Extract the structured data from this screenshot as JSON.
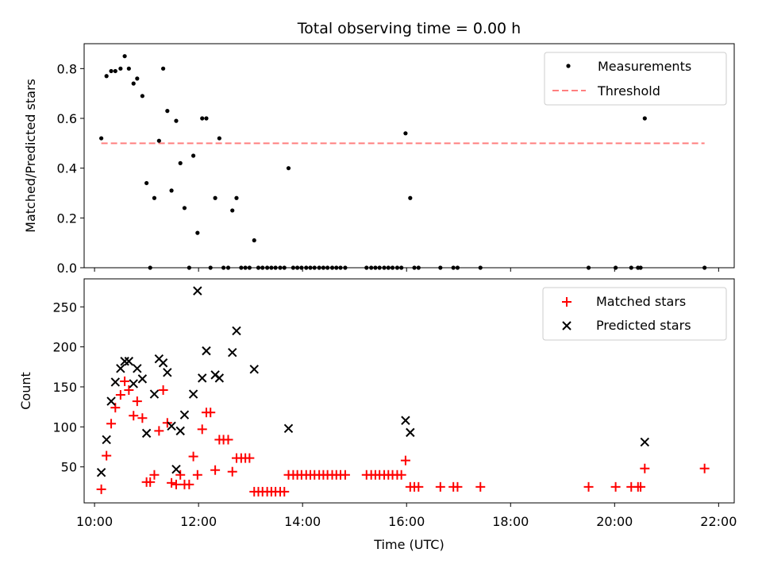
{
  "figure": {
    "title": "Total observing time = 0.00 h"
  },
  "chart_data": [
    {
      "type": "scatter",
      "ylabel": "Matched/Predicted stars",
      "xlabel": "",
      "xlim": [
        9.8,
        22.3
      ],
      "ylim": [
        0,
        0.9
      ],
      "x_tick_labels_shown": false,
      "y_ticks": [
        0.0,
        0.2,
        0.4,
        0.6,
        0.8
      ],
      "y_tick_labels": [
        "0.0",
        "0.2",
        "0.4",
        "0.6",
        "0.8"
      ],
      "grid": false,
      "legend": {
        "placement": "top-right",
        "entries": [
          "Measurements",
          "Threshold"
        ]
      },
      "series": [
        {
          "name": "Measurements",
          "marker": "dot",
          "color": "#000000",
          "points": [
            [
              10.13,
              0.52
            ],
            [
              10.23,
              0.77
            ],
            [
              10.32,
              0.79
            ],
            [
              10.4,
              0.79
            ],
            [
              10.5,
              0.8
            ],
            [
              10.58,
              0.85
            ],
            [
              10.66,
              0.8
            ],
            [
              10.75,
              0.74
            ],
            [
              10.82,
              0.76
            ],
            [
              10.92,
              0.69
            ],
            [
              11.0,
              0.34
            ],
            [
              11.07,
              0.0
            ],
            [
              11.15,
              0.28
            ],
            [
              11.24,
              0.51
            ],
            [
              11.32,
              0.8
            ],
            [
              11.4,
              0.63
            ],
            [
              11.48,
              0.31
            ],
            [
              11.57,
              0.59
            ],
            [
              11.65,
              0.42
            ],
            [
              11.73,
              0.24
            ],
            [
              11.82,
              0.0
            ],
            [
              11.9,
              0.45
            ],
            [
              11.98,
              0.14
            ],
            [
              12.07,
              0.6
            ],
            [
              12.15,
              0.6
            ],
            [
              12.23,
              0.0
            ],
            [
              12.32,
              0.28
            ],
            [
              12.4,
              0.52
            ],
            [
              12.48,
              0.0
            ],
            [
              12.57,
              0.0
            ],
            [
              12.65,
              0.23
            ],
            [
              12.73,
              0.28
            ],
            [
              12.82,
              0.0
            ],
            [
              12.9,
              0.0
            ],
            [
              12.98,
              0.0
            ],
            [
              13.07,
              0.11
            ],
            [
              13.15,
              0.0
            ],
            [
              13.23,
              0.0
            ],
            [
              13.32,
              0.0
            ],
            [
              13.4,
              0.0
            ],
            [
              13.48,
              0.0
            ],
            [
              13.57,
              0.0
            ],
            [
              13.65,
              0.0
            ],
            [
              13.73,
              0.4
            ],
            [
              13.82,
              0.0
            ],
            [
              13.9,
              0.0
            ],
            [
              13.98,
              0.0
            ],
            [
              14.07,
              0.0
            ],
            [
              14.15,
              0.0
            ],
            [
              14.23,
              0.0
            ],
            [
              14.32,
              0.0
            ],
            [
              14.4,
              0.0
            ],
            [
              14.48,
              0.0
            ],
            [
              14.57,
              0.0
            ],
            [
              14.65,
              0.0
            ],
            [
              14.73,
              0.0
            ],
            [
              14.82,
              0.0
            ],
            [
              15.23,
              0.0
            ],
            [
              15.32,
              0.0
            ],
            [
              15.4,
              0.0
            ],
            [
              15.48,
              0.0
            ],
            [
              15.57,
              0.0
            ],
            [
              15.65,
              0.0
            ],
            [
              15.73,
              0.0
            ],
            [
              15.82,
              0.0
            ],
            [
              15.9,
              0.0
            ],
            [
              15.98,
              0.54
            ],
            [
              16.07,
              0.28
            ],
            [
              16.15,
              0.0
            ],
            [
              16.23,
              0.0
            ],
            [
              16.65,
              0.0
            ],
            [
              16.9,
              0.0
            ],
            [
              16.98,
              0.0
            ],
            [
              17.42,
              0.0
            ],
            [
              19.5,
              0.0
            ],
            [
              20.02,
              0.0
            ],
            [
              20.32,
              0.0
            ],
            [
              20.45,
              0.0
            ],
            [
              20.5,
              0.0
            ],
            [
              20.58,
              0.6
            ],
            [
              21.73,
              0.0
            ]
          ]
        },
        {
          "name": "Threshold",
          "style": "dashed-line",
          "color": "#ff7f7f",
          "x": [
            10.13,
            21.73
          ],
          "y": [
            0.5,
            0.5
          ]
        }
      ]
    },
    {
      "type": "scatter",
      "ylabel": "Count",
      "xlabel": "Time (UTC)",
      "xlim": [
        9.8,
        22.3
      ],
      "ylim": [
        5,
        285
      ],
      "x_ticks": [
        10,
        12,
        14,
        16,
        18,
        20,
        22
      ],
      "x_tick_labels": [
        "10:00",
        "12:00",
        "14:00",
        "16:00",
        "18:00",
        "20:00",
        "22:00"
      ],
      "y_ticks": [
        50,
        100,
        150,
        200,
        250
      ],
      "y_tick_labels": [
        "50",
        "100",
        "150",
        "200",
        "250"
      ],
      "grid": false,
      "legend": {
        "placement": "top-right",
        "entries": [
          "Matched stars",
          "Predicted stars"
        ]
      },
      "series": [
        {
          "name": "Matched stars",
          "marker": "plus",
          "color": "#ff0000",
          "points": [
            [
              10.13,
              22
            ],
            [
              10.23,
              64
            ],
            [
              10.32,
              104
            ],
            [
              10.4,
              124
            ],
            [
              10.5,
              140
            ],
            [
              10.58,
              157
            ],
            [
              10.66,
              146
            ],
            [
              10.75,
              114
            ],
            [
              10.82,
              132
            ],
            [
              10.92,
              111
            ],
            [
              11.0,
              31
            ],
            [
              11.07,
              31
            ],
            [
              11.15,
              40
            ],
            [
              11.24,
              95
            ],
            [
              11.32,
              146
            ],
            [
              11.4,
              105
            ],
            [
              11.48,
              30
            ],
            [
              11.57,
              28
            ],
            [
              11.65,
              40
            ],
            [
              11.73,
              28
            ],
            [
              11.82,
              28
            ],
            [
              11.9,
              63
            ],
            [
              11.98,
              40
            ],
            [
              12.07,
              97
            ],
            [
              12.15,
              118
            ],
            [
              12.23,
              118
            ],
            [
              12.32,
              46
            ],
            [
              12.4,
              84
            ],
            [
              12.48,
              84
            ],
            [
              12.57,
              84
            ],
            [
              12.65,
              44
            ],
            [
              12.73,
              61
            ],
            [
              12.82,
              61
            ],
            [
              12.9,
              61
            ],
            [
              12.98,
              61
            ],
            [
              13.07,
              19
            ],
            [
              13.15,
              19
            ],
            [
              13.23,
              19
            ],
            [
              13.32,
              19
            ],
            [
              13.4,
              19
            ],
            [
              13.48,
              19
            ],
            [
              13.57,
              19
            ],
            [
              13.65,
              19
            ],
            [
              13.73,
              40
            ],
            [
              13.82,
              40
            ],
            [
              13.9,
              40
            ],
            [
              13.98,
              40
            ],
            [
              14.07,
              40
            ],
            [
              14.15,
              40
            ],
            [
              14.23,
              40
            ],
            [
              14.32,
              40
            ],
            [
              14.4,
              40
            ],
            [
              14.48,
              40
            ],
            [
              14.57,
              40
            ],
            [
              14.65,
              40
            ],
            [
              14.73,
              40
            ],
            [
              14.82,
              40
            ],
            [
              15.23,
              40
            ],
            [
              15.32,
              40
            ],
            [
              15.4,
              40
            ],
            [
              15.48,
              40
            ],
            [
              15.57,
              40
            ],
            [
              15.65,
              40
            ],
            [
              15.73,
              40
            ],
            [
              15.82,
              40
            ],
            [
              15.9,
              40
            ],
            [
              15.98,
              58
            ],
            [
              16.07,
              25
            ],
            [
              16.15,
              25
            ],
            [
              16.23,
              25
            ],
            [
              16.65,
              25
            ],
            [
              16.9,
              25
            ],
            [
              16.98,
              25
            ],
            [
              17.42,
              25
            ],
            [
              19.5,
              25
            ],
            [
              20.02,
              25
            ],
            [
              20.32,
              25
            ],
            [
              20.45,
              25
            ],
            [
              20.5,
              25
            ],
            [
              20.58,
              48
            ],
            [
              21.73,
              48
            ]
          ]
        },
        {
          "name": "Predicted stars",
          "marker": "x",
          "color": "#000000",
          "points": [
            [
              10.13,
              43
            ],
            [
              10.23,
              84
            ],
            [
              10.32,
              132
            ],
            [
              10.4,
              156
            ],
            [
              10.5,
              173
            ],
            [
              10.58,
              182
            ],
            [
              10.66,
              182
            ],
            [
              10.75,
              154
            ],
            [
              10.82,
              173
            ],
            [
              10.92,
              160
            ],
            [
              11.0,
              92
            ],
            [
              11.15,
              141
            ],
            [
              11.24,
              185
            ],
            [
              11.32,
              180
            ],
            [
              11.4,
              168
            ],
            [
              11.48,
              101
            ],
            [
              11.57,
              47
            ],
            [
              11.65,
              95
            ],
            [
              11.73,
              115
            ],
            [
              11.9,
              141
            ],
            [
              11.98,
              270
            ],
            [
              12.07,
              161
            ],
            [
              12.15,
              195
            ],
            [
              12.32,
              165
            ],
            [
              12.4,
              161
            ],
            [
              12.65,
              193
            ],
            [
              12.73,
              220
            ],
            [
              13.07,
              172
            ],
            [
              13.73,
              98
            ],
            [
              15.98,
              108
            ],
            [
              16.07,
              93
            ],
            [
              20.58,
              81
            ]
          ]
        }
      ]
    }
  ]
}
